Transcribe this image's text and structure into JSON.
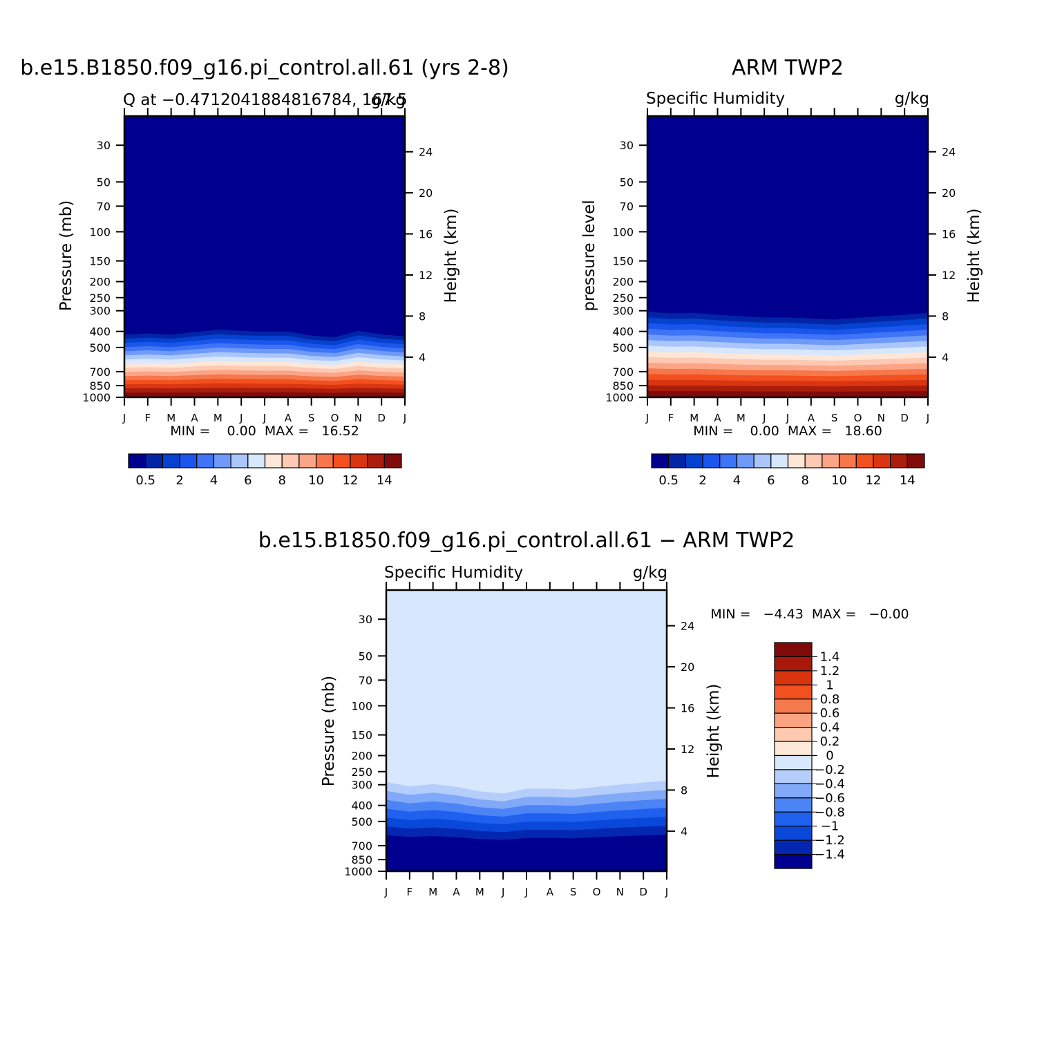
{
  "colors": {
    "levels": [
      "#00008f",
      "#0225a6",
      "#0442cf",
      "#1a55ec",
      "#3e74f5",
      "#6f9af7",
      "#abc6fa",
      "#d6e7fe",
      "#ffe6d6",
      "#fdc9b3",
      "#fba586",
      "#f6774c",
      "#f2501f",
      "#d93511",
      "#aa1d0d",
      "#7f0c0b"
    ],
    "diff_levels": [
      "#00008f",
      "#0427b2",
      "#0a48d9",
      "#2060ef",
      "#4c84f6",
      "#82a9f8",
      "#b5cdfb",
      "#d7e8fe",
      "#ffe8d7",
      "#fdcab0",
      "#faa382",
      "#f4794c",
      "#f2511f",
      "#d8350f",
      "#a8190b",
      "#800a0a"
    ]
  },
  "chart_data": [
    {
      "type": "heatmap",
      "title": "b.e15.B1850.f09_g16.pi_control.all.61 (yrs 2-8)",
      "left_label": "Q at −0.4712041884816784, 167.5",
      "right_label": "g/kg",
      "ylabel": "Pressure (mb)",
      "ylabel_right": "Height (km)",
      "x_ticks": [
        "J",
        "F",
        "M",
        "A",
        "M",
        "J",
        "J",
        "A",
        "S",
        "O",
        "N",
        "D",
        "J"
      ],
      "y_ticks": [
        "30",
        "50",
        "70",
        "100",
        "150",
        "200",
        "250",
        "300",
        "400",
        "500",
        "700",
        "850",
        "1000"
      ],
      "y_ticks_right": [
        "24",
        "20",
        "16",
        "12",
        "8",
        "4"
      ],
      "minmax": "MIN =    0.00  MAX =   16.52",
      "colorbar_labels": [
        "0.5",
        "2",
        "4",
        "6",
        "8",
        "10",
        "12",
        "14"
      ],
      "moisture_top_mb": [
        420,
        412,
        420,
        405,
        392,
        398,
        402,
        402,
        425,
        435,
        398,
        418,
        430
      ],
      "near_surface_max_g_kg": 16.52
    },
    {
      "type": "heatmap",
      "title": "ARM TWP2",
      "left_label": "Specific Humidity",
      "right_label": "g/kg",
      "ylabel": "pressure level",
      "ylabel_right": "Height (km)",
      "x_ticks": [
        "J",
        "F",
        "M",
        "A",
        "M",
        "J",
        "J",
        "A",
        "S",
        "O",
        "N",
        "D",
        "J"
      ],
      "y_ticks": [
        "30",
        "50",
        "70",
        "100",
        "150",
        "200",
        "250",
        "300",
        "400",
        "500",
        "700",
        "850",
        "1000"
      ],
      "y_ticks_right": [
        "24",
        "20",
        "16",
        "12",
        "8",
        "4"
      ],
      "minmax": "MIN =    0.00  MAX =   18.60",
      "colorbar_labels": [
        "0.5",
        "2",
        "4",
        "6",
        "8",
        "10",
        "12",
        "14"
      ],
      "moisture_top_mb": [
        305,
        312,
        310,
        318,
        325,
        330,
        330,
        335,
        340,
        332,
        325,
        318,
        310
      ],
      "near_surface_max_g_kg": 18.6
    },
    {
      "type": "heatmap",
      "title": "b.e15.B1850.f09_g16.pi_control.all.61 − ARM TWP2",
      "left_label": "Specific Humidity",
      "right_label": "g/kg",
      "ylabel": "Pressure (mb)",
      "ylabel_right": "Height (km)",
      "x_ticks": [
        "J",
        "F",
        "M",
        "A",
        "M",
        "J",
        "J",
        "A",
        "S",
        "O",
        "N",
        "D",
        "J"
      ],
      "y_ticks": [
        "30",
        "50",
        "70",
        "100",
        "150",
        "200",
        "250",
        "300",
        "400",
        "500",
        "700",
        "850",
        "1000"
      ],
      "y_ticks_right": [
        "24",
        "20",
        "16",
        "12",
        "8",
        "4"
      ],
      "minmax": "MIN =   −4.43  MAX =   −0.00",
      "colorbar_labels": [
        "1.4",
        "1.2",
        "1",
        "0.8",
        "0.6",
        "0.4",
        "0.2",
        "0",
        "−0.2",
        "−0.4",
        "−0.6",
        "−0.8",
        "−1",
        "−1.2",
        "−1.4"
      ],
      "negative_top_mb": [
        290,
        308,
        298,
        310,
        330,
        340,
        318,
        318,
        322,
        310,
        300,
        292,
        285
      ],
      "min_g_kg": -4.43,
      "max_g_kg": -0.0
    }
  ]
}
